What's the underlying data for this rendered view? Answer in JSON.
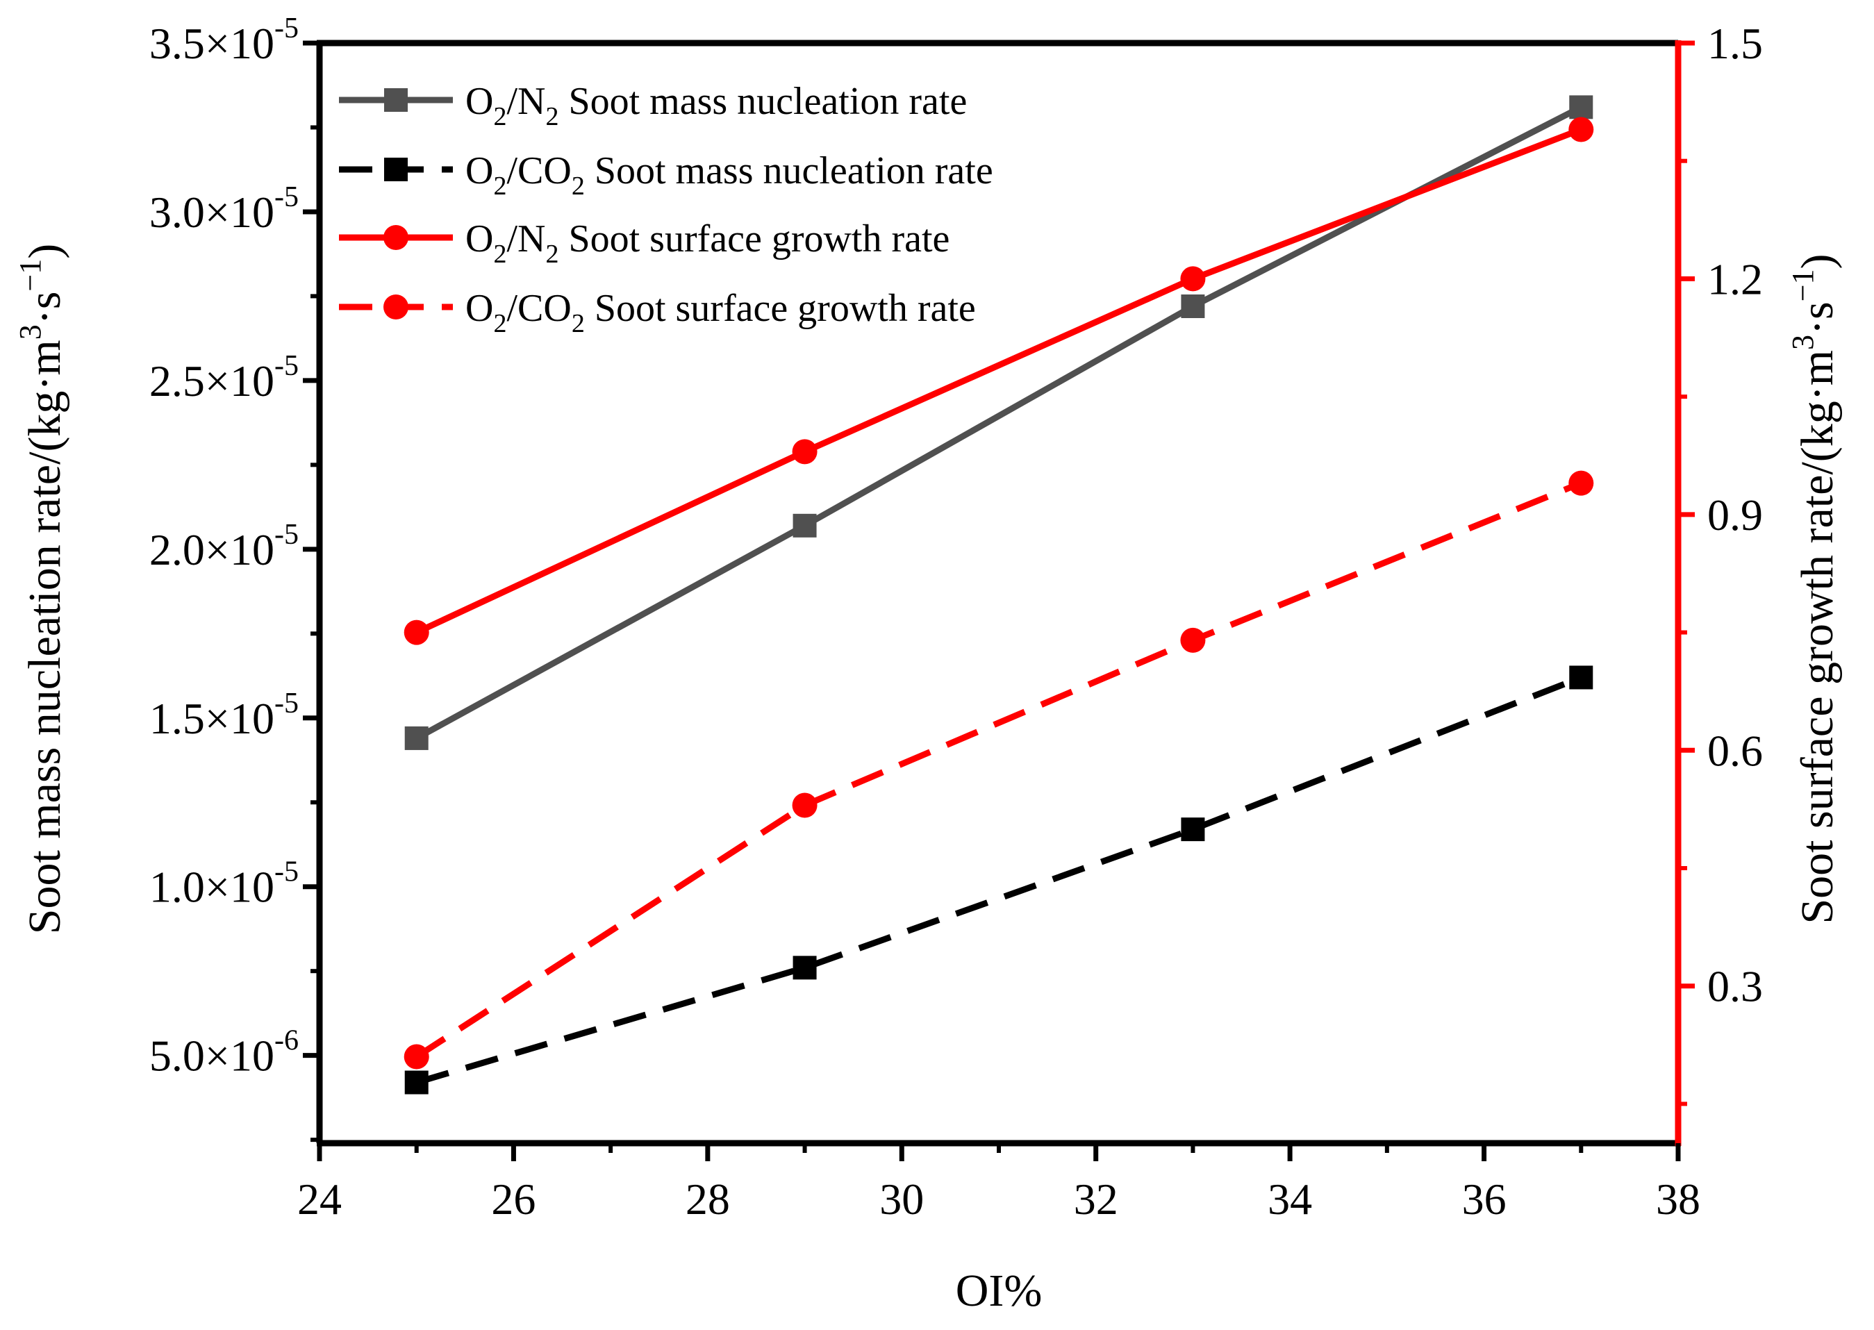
{
  "chart_data": {
    "type": "line",
    "x": [
      25,
      29,
      33,
      37
    ],
    "xlabel": "OI%",
    "xlim": [
      24,
      38
    ],
    "xticks": [
      "24",
      "26",
      "28",
      "30",
      "32",
      "34",
      "36",
      "38"
    ],
    "xtick_values": [
      24,
      26,
      28,
      30,
      32,
      34,
      36,
      38
    ],
    "ylabel_left": "Soot mass nucleation rate/(kg·m³·s⁻¹)",
    "ylim_left": [
      2.4e-06,
      3.5e-05
    ],
    "yticks_left": [
      {
        "value": 5e-06,
        "mantissa": "5.0",
        "exp": "-6"
      },
      {
        "value": 1e-05,
        "mantissa": "1.0",
        "exp": "-5"
      },
      {
        "value": 1.5e-05,
        "mantissa": "1.5",
        "exp": "-5"
      },
      {
        "value": 2e-05,
        "mantissa": "2.0",
        "exp": "-5"
      },
      {
        "value": 2.5e-05,
        "mantissa": "2.5",
        "exp": "-5"
      },
      {
        "value": 3e-05,
        "mantissa": "3.0",
        "exp": "-5"
      },
      {
        "value": 3.5e-05,
        "mantissa": "3.5",
        "exp": "-5"
      }
    ],
    "ylabel_right": "Soot surface growth rate/(kg·m³·s⁻¹)",
    "ylim_right": [
      0.1,
      1.5
    ],
    "yticks_right": [
      "0.3",
      "0.6",
      "0.9",
      "1.2",
      "1.5"
    ],
    "ytick_values_right": [
      0.3,
      0.6,
      0.9,
      1.2,
      1.5
    ],
    "series": [
      {
        "name": "O2/N2 Soot mass nucleation rate",
        "legend": {
          "a": "O",
          "b": "2",
          "c": "/N",
          "d": "2",
          "e": " Soot mass nucleation rate"
        },
        "axis": "left",
        "values": [
          1.44e-05,
          2.07e-05,
          2.72e-05,
          3.31e-05
        ],
        "color": "#505050",
        "marker": "square",
        "dash": "solid"
      },
      {
        "name": "O2/CO2 Soot mass nucleation rate",
        "legend": {
          "a": "O",
          "b": "2",
          "c": "/CO",
          "d": "2",
          "e": " Soot mass nucleation rate"
        },
        "axis": "left",
        "values": [
          4.2e-06,
          7.6e-06,
          1.17e-05,
          1.62e-05
        ],
        "color": "#000000",
        "marker": "square",
        "dash": "dashed"
      },
      {
        "name": "O2/N2 Soot surface growth rate",
        "legend": {
          "a": "O",
          "b": "2",
          "c": "/N",
          "d": "2",
          "e": " Soot surface growth rate"
        },
        "axis": "right",
        "values": [
          0.75,
          0.98,
          1.2,
          1.39
        ],
        "color": "#ff0000",
        "marker": "circle",
        "dash": "solid"
      },
      {
        "name": "O2/CO2 Soot surface growth rate",
        "legend": {
          "a": "O",
          "b": "2",
          "c": "/CO",
          "d": "2",
          "e": " Soot surface growth rate"
        },
        "axis": "right",
        "values": [
          0.21,
          0.53,
          0.74,
          0.94
        ],
        "color": "#ff0000",
        "marker": "circle",
        "dash": "dashed"
      }
    ],
    "legend_position": "top-left",
    "grid": false
  }
}
